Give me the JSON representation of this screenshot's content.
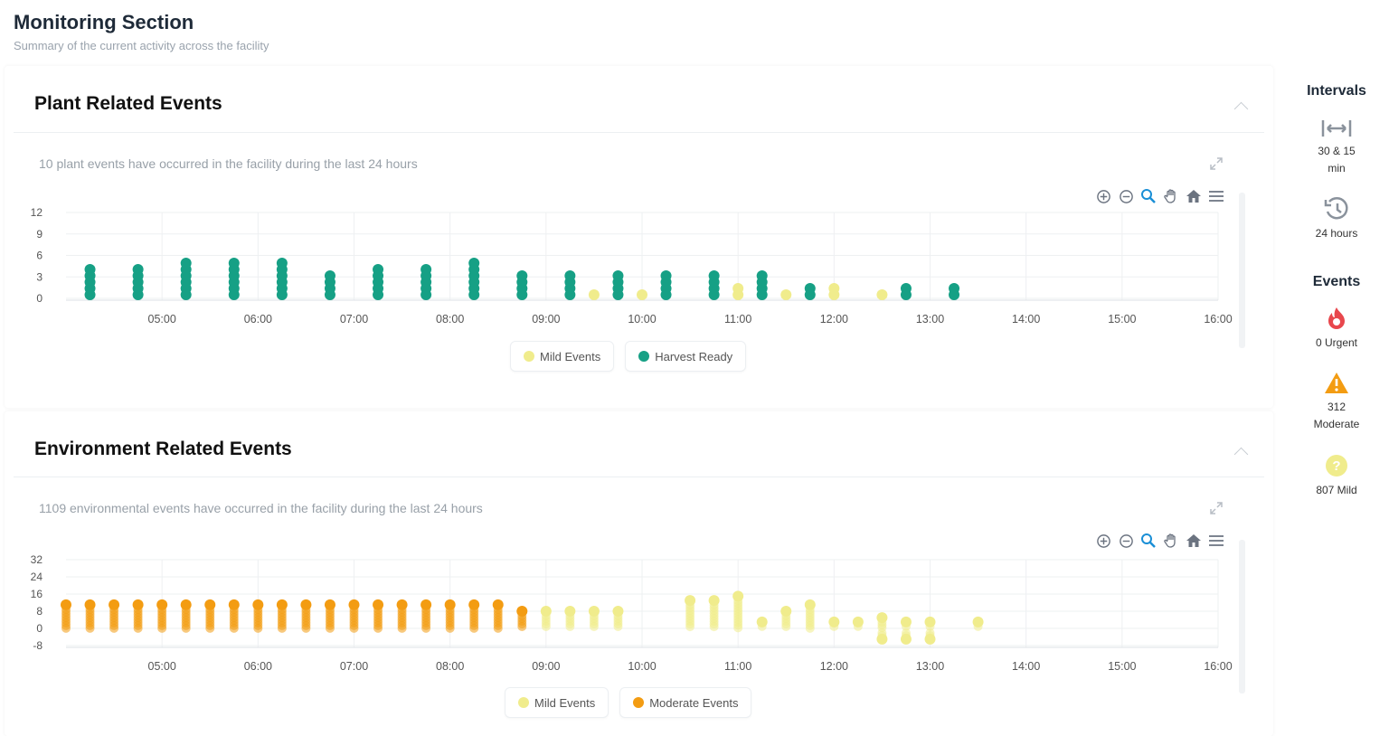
{
  "page": {
    "title": "Monitoring Section",
    "subtitle": "Summary of the current activity across the facility"
  },
  "plant": {
    "title": "Plant Related Events",
    "summary": "10 plant events have occurred in the facility during the last 24 hours",
    "legend": [
      "Mild Events",
      "Harvest Ready"
    ]
  },
  "environment": {
    "title": "Environment Related Events",
    "summary": "1109 environmental events have occurred in the facility during the last 24 hours",
    "legend": [
      "Mild Events",
      "Moderate Events"
    ]
  },
  "toolbar_icons": [
    "zoom-in-icon",
    "zoom-out-icon",
    "magnifier-icon",
    "pan-hand-icon",
    "home-icon",
    "menu-icon"
  ],
  "sidebar": {
    "intervals_heading": "Intervals",
    "interval_items": [
      {
        "icon": "fit-width-icon",
        "label_line1": "30 & 15",
        "label_line2": "min"
      },
      {
        "icon": "history-icon",
        "label_line1": "24 hours",
        "label_line2": ""
      }
    ],
    "events_heading": "Events",
    "event_items": [
      {
        "icon": "fire-icon",
        "label_line1": "0 Urgent",
        "label_line2": "",
        "color": "#e8474d"
      },
      {
        "icon": "warning-icon",
        "label_line1": "312",
        "label_line2": "Moderate",
        "color": "#f39c12"
      },
      {
        "icon": "question-icon",
        "label_line1": "807 Mild",
        "label_line2": "",
        "color": "#f0ec8c"
      }
    ]
  },
  "colors": {
    "mild": "#f0ec8c",
    "harvest": "#16a085",
    "moderate": "#f39c12"
  },
  "chart_data": [
    {
      "type": "scatter",
      "title": "Plant Related Events",
      "x_ticks": [
        "05:00",
        "06:00",
        "07:00",
        "08:00",
        "09:00",
        "10:00",
        "11:00",
        "12:00",
        "13:00",
        "14:00",
        "15:00",
        "16:00"
      ],
      "y_ticks": [
        0,
        3,
        6,
        9,
        12
      ],
      "ylim": [
        0,
        12
      ],
      "xlim": [
        "04:00",
        "16:00"
      ],
      "grid": true,
      "legend_position": "bottom",
      "series": [
        {
          "name": "Harvest Ready",
          "color": "#16a085",
          "points": [
            {
              "x": "04:15",
              "count": 5
            },
            {
              "x": "04:45",
              "count": 5
            },
            {
              "x": "05:15",
              "count": 6
            },
            {
              "x": "05:45",
              "count": 6
            },
            {
              "x": "06:15",
              "count": 6
            },
            {
              "x": "06:45",
              "count": 4
            },
            {
              "x": "07:15",
              "count": 5
            },
            {
              "x": "07:45",
              "count": 5
            },
            {
              "x": "08:15",
              "count": 6
            },
            {
              "x": "08:45",
              "count": 4
            },
            {
              "x": "09:15",
              "count": 4
            },
            {
              "x": "09:45",
              "count": 4
            },
            {
              "x": "10:15",
              "count": 4
            },
            {
              "x": "10:45",
              "count": 4
            },
            {
              "x": "11:15",
              "count": 4
            },
            {
              "x": "11:45",
              "count": 2
            },
            {
              "x": "12:45",
              "count": 2
            },
            {
              "x": "13:15",
              "count": 2
            }
          ]
        },
        {
          "name": "Mild Events",
          "color": "#f0ec8c",
          "points": [
            {
              "x": "09:30",
              "count": 1
            },
            {
              "x": "10:00",
              "count": 1
            },
            {
              "x": "11:00",
              "count": 2
            },
            {
              "x": "11:30",
              "count": 1
            },
            {
              "x": "12:00",
              "count": 2
            },
            {
              "x": "12:30",
              "count": 1
            }
          ]
        }
      ]
    },
    {
      "type": "scatter",
      "title": "Environment Related Events",
      "x_ticks": [
        "05:00",
        "06:00",
        "07:00",
        "08:00",
        "09:00",
        "10:00",
        "11:00",
        "12:00",
        "13:00",
        "14:00",
        "15:00",
        "16:00"
      ],
      "y_ticks": [
        32,
        24,
        16,
        8,
        0,
        -8
      ],
      "ylim": [
        -8,
        32
      ],
      "xlim": [
        "04:00",
        "16:00"
      ],
      "grid": true,
      "legend_position": "bottom",
      "series": [
        {
          "name": "Moderate Events",
          "color": "#f39c12",
          "points": [
            {
              "x": "04:00",
              "y": 11
            },
            {
              "x": "04:15",
              "y": 11
            },
            {
              "x": "04:30",
              "y": 11
            },
            {
              "x": "04:45",
              "y": 11
            },
            {
              "x": "05:00",
              "y": 11
            },
            {
              "x": "05:15",
              "y": 11
            },
            {
              "x": "05:30",
              "y": 11
            },
            {
              "x": "05:45",
              "y": 11
            },
            {
              "x": "06:00",
              "y": 11
            },
            {
              "x": "06:15",
              "y": 11
            },
            {
              "x": "06:30",
              "y": 11
            },
            {
              "x": "06:45",
              "y": 11
            },
            {
              "x": "07:00",
              "y": 11
            },
            {
              "x": "07:15",
              "y": 11
            },
            {
              "x": "07:30",
              "y": 11
            },
            {
              "x": "07:45",
              "y": 11
            },
            {
              "x": "08:00",
              "y": 11
            },
            {
              "x": "08:15",
              "y": 11
            },
            {
              "x": "08:30",
              "y": 11
            },
            {
              "x": "08:45",
              "y": 8
            }
          ]
        },
        {
          "name": "Mild Events",
          "color": "#f0ec8c",
          "points": [
            {
              "x": "09:00",
              "y": 8
            },
            {
              "x": "09:15",
              "y": 8
            },
            {
              "x": "09:30",
              "y": 8
            },
            {
              "x": "09:45",
              "y": 8
            },
            {
              "x": "10:30",
              "y": 13
            },
            {
              "x": "10:45",
              "y": 13
            },
            {
              "x": "11:00",
              "y": 15
            },
            {
              "x": "11:15",
              "y": 3
            },
            {
              "x": "11:30",
              "y": 8
            },
            {
              "x": "11:45",
              "y": 11
            },
            {
              "x": "12:00",
              "y": 3
            },
            {
              "x": "12:15",
              "y": 3
            },
            {
              "x": "12:30",
              "y": 5
            },
            {
              "x": "12:30",
              "y": -5
            },
            {
              "x": "12:45",
              "y": 3
            },
            {
              "x": "12:45",
              "y": -5
            },
            {
              "x": "13:00",
              "y": 3
            },
            {
              "x": "13:00",
              "y": -5
            },
            {
              "x": "13:30",
              "y": 3
            }
          ]
        }
      ]
    }
  ]
}
